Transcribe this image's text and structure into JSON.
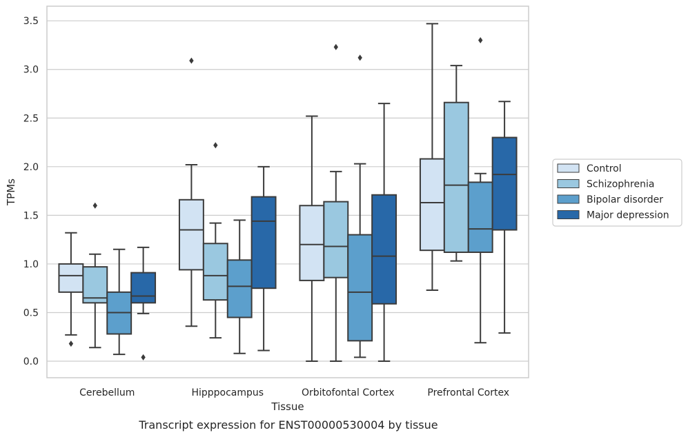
{
  "chart_data": {
    "type": "box",
    "caption": "Transcript expression for ENST00000530004 by tissue",
    "xlabel": "Tissue",
    "ylabel": "TPMs",
    "ylim": [
      -0.17,
      3.65
    ],
    "yticks": [
      0.0,
      0.5,
      1.0,
      1.5,
      2.0,
      2.5,
      3.0,
      3.5
    ],
    "ytick_labels": [
      "0.0",
      "0.5",
      "1.0",
      "1.5",
      "2.0",
      "2.5",
      "3.0",
      "3.5"
    ],
    "grid": "horizontal",
    "legend_position": "right",
    "categories": [
      "Cerebellum",
      "Hipppocampus",
      "Orbitofontal Cortex",
      "Prefrontal Cortex"
    ],
    "series": [
      {
        "name": "Control",
        "color": "#d2e3f3",
        "boxes": [
          {
            "whislo": 0.27,
            "q1": 0.71,
            "med": 0.88,
            "q3": 1.0,
            "whishi": 1.32,
            "fliers": [
              0.18
            ]
          },
          {
            "whislo": 0.36,
            "q1": 0.94,
            "med": 1.35,
            "q3": 1.66,
            "whishi": 2.02,
            "fliers": [
              3.09
            ]
          },
          {
            "whislo": 0.0,
            "q1": 0.83,
            "med": 1.2,
            "q3": 1.6,
            "whishi": 2.52,
            "fliers": []
          },
          {
            "whislo": 0.73,
            "q1": 1.14,
            "med": 1.63,
            "q3": 2.08,
            "whishi": 3.47,
            "fliers": []
          }
        ]
      },
      {
        "name": "Schizophrenia",
        "color": "#9ac8e0",
        "boxes": [
          {
            "whislo": 0.14,
            "q1": 0.6,
            "med": 0.65,
            "q3": 0.97,
            "whishi": 1.1,
            "fliers": [
              1.6
            ]
          },
          {
            "whislo": 0.24,
            "q1": 0.63,
            "med": 0.88,
            "q3": 1.21,
            "whishi": 1.42,
            "fliers": [
              2.22
            ]
          },
          {
            "whislo": 0.0,
            "q1": 0.86,
            "med": 1.18,
            "q3": 1.64,
            "whishi": 1.95,
            "fliers": [
              3.23
            ]
          },
          {
            "whislo": 1.03,
            "q1": 1.12,
            "med": 1.81,
            "q3": 2.66,
            "whishi": 3.04,
            "fliers": []
          }
        ]
      },
      {
        "name": "Bipolar disorder",
        "color": "#5c9fcc",
        "boxes": [
          {
            "whislo": 0.07,
            "q1": 0.28,
            "med": 0.5,
            "q3": 0.71,
            "whishi": 1.15,
            "fliers": []
          },
          {
            "whislo": 0.08,
            "q1": 0.45,
            "med": 0.77,
            "q3": 1.04,
            "whishi": 1.45,
            "fliers": []
          },
          {
            "whislo": 0.04,
            "q1": 0.21,
            "med": 0.71,
            "q3": 1.3,
            "whishi": 2.03,
            "fliers": [
              3.12
            ]
          },
          {
            "whislo": 0.19,
            "q1": 1.12,
            "med": 1.36,
            "q3": 1.84,
            "whishi": 1.93,
            "fliers": [
              3.3
            ]
          }
        ]
      },
      {
        "name": "Major depression",
        "color": "#2868a8",
        "boxes": [
          {
            "whislo": 0.49,
            "q1": 0.6,
            "med": 0.67,
            "q3": 0.91,
            "whishi": 1.17,
            "fliers": [
              0.04
            ]
          },
          {
            "whislo": 0.11,
            "q1": 0.75,
            "med": 1.44,
            "q3": 1.69,
            "whishi": 2.0,
            "fliers": []
          },
          {
            "whislo": 0.0,
            "q1": 0.59,
            "med": 1.08,
            "q3": 1.71,
            "whishi": 2.65,
            "fliers": []
          },
          {
            "whislo": 0.29,
            "q1": 1.35,
            "med": 1.92,
            "q3": 2.3,
            "whishi": 2.67,
            "fliers": []
          }
        ]
      }
    ]
  }
}
